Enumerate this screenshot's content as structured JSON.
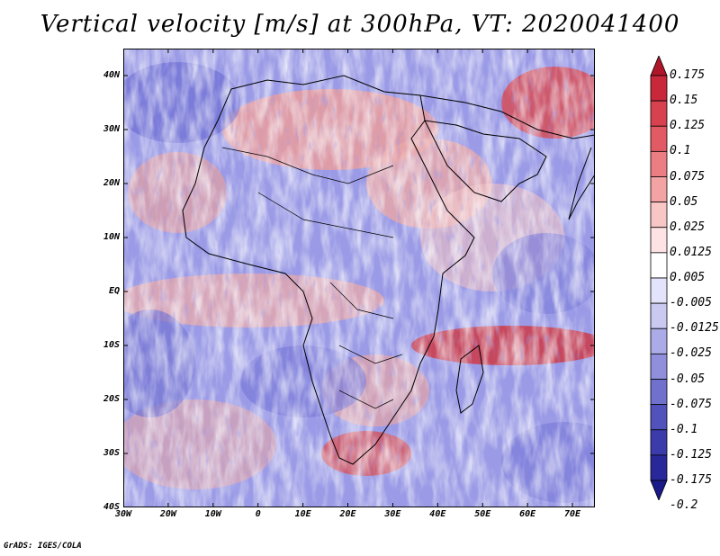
{
  "title": "Vertical velocity [m/s] at 300hPa, VT: 2020041400",
  "credit": "GrADS: IGES/COLA",
  "map": {
    "lon_range": [
      -30,
      75
    ],
    "lat_range": [
      -40,
      45
    ],
    "lat_ticks": [
      "40N",
      "30N",
      "20N",
      "10N",
      "EQ",
      "10S",
      "20S",
      "30S",
      "40S"
    ],
    "lat_values": [
      40,
      30,
      20,
      10,
      0,
      -10,
      -20,
      -30,
      -40
    ],
    "lon_ticks": [
      "30W",
      "20W",
      "10W",
      "0",
      "10E",
      "20E",
      "30E",
      "40E",
      "50E",
      "60E",
      "70E"
    ],
    "lon_values": [
      -30,
      -20,
      -10,
      0,
      10,
      20,
      30,
      40,
      50,
      60,
      70
    ]
  },
  "colorbar": {
    "labels": [
      "0.175",
      "0.15",
      "0.125",
      "0.1",
      "0.075",
      "0.05",
      "0.025",
      "0.0125",
      "0.005",
      "-0.005",
      "-0.0125",
      "-0.025",
      "-0.05",
      "-0.075",
      "-0.1",
      "-0.125",
      "-0.175",
      "-0.2"
    ],
    "colors": [
      "#b0162a",
      "#c8283a",
      "#d8424f",
      "#e25a63",
      "#ec7e83",
      "#f4a3a4",
      "#f9c6c6",
      "#fde3e3",
      "#ffffff",
      "#e3e3fb",
      "#c9c9f2",
      "#ababe8",
      "#8f8fdc",
      "#7070cd",
      "#5252bd",
      "#3b3bab",
      "#28289a",
      "#1a1a88"
    ]
  }
}
